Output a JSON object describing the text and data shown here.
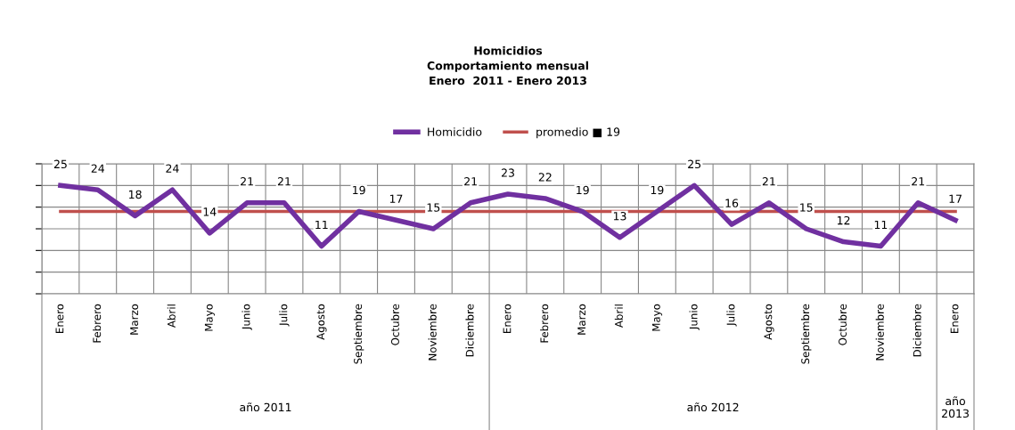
{
  "chart_data": {
    "type": "line",
    "title": "Homicidios\nComportamiento mensual\nEnero  2011 - Enero 2013",
    "categories": [
      "Enero",
      "Febrero",
      "Marzo",
      "Abril",
      "Mayo",
      "Junio",
      "Julio",
      "Agosto",
      "Septiembre",
      "Octubre",
      "Noviembre",
      "Diciembre",
      "Enero",
      "Febrero",
      "Marzo",
      "Abril",
      "Mayo",
      "Junio",
      "Julio",
      "Agosto",
      "Septiembre",
      "Octubre",
      "Noviembre",
      "Diciembre",
      "Enero"
    ],
    "series": [
      {
        "name": "Homicidio",
        "color": "#7030a0",
        "values": [
          25,
          24,
          18,
          24,
          14,
          21,
          21,
          11,
          19,
          17,
          15,
          21,
          23,
          22,
          19,
          13,
          19,
          25,
          16,
          21,
          15,
          12,
          11,
          21,
          17
        ]
      }
    ],
    "ref_lines": [
      {
        "axis": "y",
        "value": 19,
        "label": "promedio ■ 19",
        "color": "#c0504d"
      }
    ],
    "ylim": [
      0,
      30
    ],
    "yticks": [
      {
        "value": 0,
        "label": null
      },
      {
        "value": 5,
        "label": null
      },
      {
        "value": 10,
        "label": null
      },
      {
        "value": 15,
        "label": null
      },
      {
        "value": 20,
        "label": null
      },
      {
        "value": 25,
        "label": null
      },
      {
        "value": 30,
        "label": null
      }
    ],
    "data_labels": true,
    "grid": true,
    "legend": "top",
    "marker": "none",
    "line_style": "solid",
    "annotations": [
      "año 2011",
      "año 2012",
      "año 2013"
    ]
  }
}
